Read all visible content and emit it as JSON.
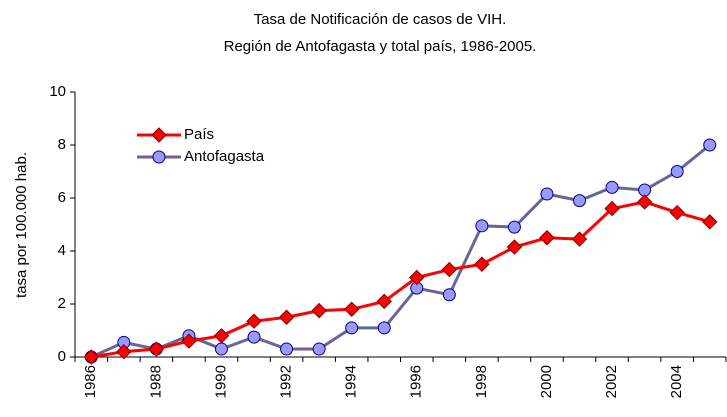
{
  "chart_data": {
    "type": "line",
    "title": "Tasa de Notificación de casos de VIH.",
    "subtitle": "Región de Antofagasta y total país, 1986-2005.",
    "y_label": "tasa por 100.000 hab.",
    "categories": [
      "1986",
      null,
      "1988",
      null,
      "1990",
      null,
      "1992",
      null,
      "1994",
      null,
      "1996",
      null,
      "1998",
      null,
      "2000",
      null,
      "2002",
      null,
      "2004",
      null
    ],
    "series": [
      {
        "name": "País",
        "color": "#ff0000",
        "marker": "diamond",
        "marker_fill": "#ff0000",
        "values": [
          0,
          0.2,
          0.3,
          0.6,
          0.8,
          1.35,
          1.5,
          1.75,
          1.8,
          2.1,
          3.0,
          3.3,
          3.5,
          4.15,
          4.5,
          4.45,
          5.6,
          5.85,
          5.45,
          5.1
        ]
      },
      {
        "name": "Antofagasta",
        "color": "#666699",
        "marker": "circle",
        "marker_fill": "#9999ff",
        "values": [
          0,
          0.55,
          0.3,
          0.8,
          0.3,
          0.75,
          0.3,
          0.3,
          1.1,
          1.1,
          2.6,
          2.35,
          4.95,
          4.9,
          6.15,
          5.9,
          6.4,
          6.3,
          7.0,
          8.0
        ]
      }
    ],
    "ylim": [
      0,
      10
    ],
    "yticks": [
      0,
      2,
      4,
      6,
      8,
      10
    ],
    "grid": false,
    "legend": "upper left"
  }
}
